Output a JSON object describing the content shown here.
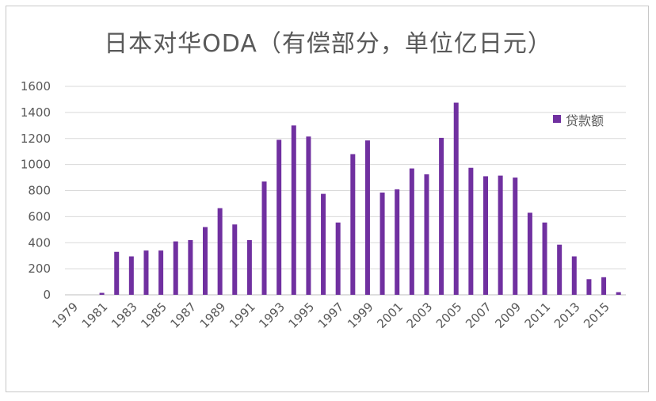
{
  "chart_data": {
    "type": "bar",
    "title": "日本对华ODA（有偿部分，单位亿日元）",
    "colors": {
      "bar": "#7030a0",
      "grid": "#d9d9d9",
      "axis": "#bfbfbf",
      "text": "#595959"
    },
    "legend": {
      "position": "right",
      "label": "贷款额"
    },
    "ylim": [
      0,
      1600
    ],
    "yticks": [
      "0",
      "200",
      "400",
      "600",
      "800",
      "1000",
      "1200",
      "1400",
      "1600"
    ],
    "categories": [
      "1979",
      "1980",
      "1981",
      "1982",
      "1983",
      "1984",
      "1985",
      "1986",
      "1987",
      "1988",
      "1989",
      "1990",
      "1991",
      "1992",
      "1993",
      "1994",
      "1995",
      "1996",
      "1997",
      "1998",
      "1999",
      "2000",
      "2001",
      "2002",
      "2003",
      "2004",
      "2005",
      "2006",
      "2007",
      "2008",
      "2009",
      "2010",
      "2011",
      "2012",
      "2013",
      "2014",
      "2015",
      "2016"
    ],
    "xtick_labels": [
      "1979",
      "1981",
      "1983",
      "1985",
      "1987",
      "1989",
      "1991",
      "1993",
      "1995",
      "1997",
      "1999",
      "2001",
      "2003",
      "2005",
      "2007",
      "2009",
      "2011",
      "2013",
      "2015"
    ],
    "series": [
      {
        "name": "贷款额",
        "values": [
          0,
          0,
          15,
          330,
          295,
          340,
          340,
          410,
          420,
          520,
          665,
          540,
          420,
          870,
          1190,
          1300,
          1215,
          775,
          555,
          1080,
          1185,
          785,
          810,
          970,
          925,
          1205,
          1475,
          975,
          910,
          915,
          900,
          630,
          555,
          385,
          295,
          120,
          135,
          20
        ]
      }
    ]
  }
}
